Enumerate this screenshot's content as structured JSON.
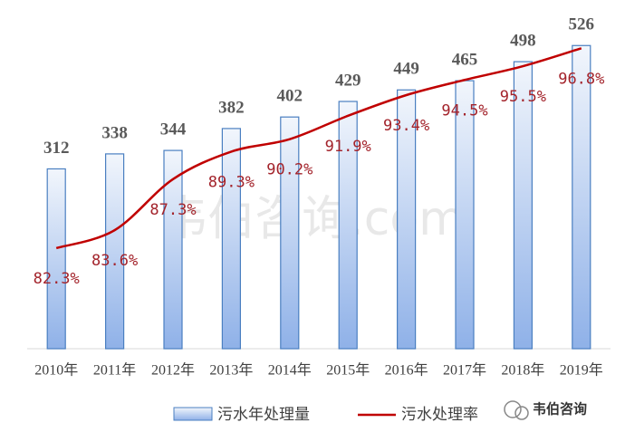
{
  "chart_data": {
    "type": "bar+line",
    "categories": [
      "2010年",
      "2011年",
      "2012年",
      "2013年",
      "2014年",
      "2015年",
      "2016年",
      "2017年",
      "2018年",
      "2019年"
    ],
    "series": [
      {
        "name": "污水年处理量",
        "color": "#4a7fc1",
        "values": [
          312,
          338,
          344,
          382,
          402,
          429,
          449,
          465,
          498,
          526
        ]
      },
      {
        "name": "污水处理率",
        "color": "#c00000",
        "axis": "y2",
        "values": [
          82.3,
          83.6,
          87.3,
          89.3,
          90.2,
          91.9,
          93.4,
          94.5,
          95.5,
          96.8
        ],
        "value_labels": [
          "82.3%",
          "83.6%",
          "87.3%",
          "89.3%",
          "90.2%",
          "91.9%",
          "93.4%",
          "94.5%",
          "95.5%",
          "96.8%"
        ]
      }
    ],
    "ylim": [
      0,
      550
    ],
    "y2lim": [
      75,
      98
    ]
  },
  "watermark": "韦伯咨询.com",
  "brand": "韦伯咨询"
}
